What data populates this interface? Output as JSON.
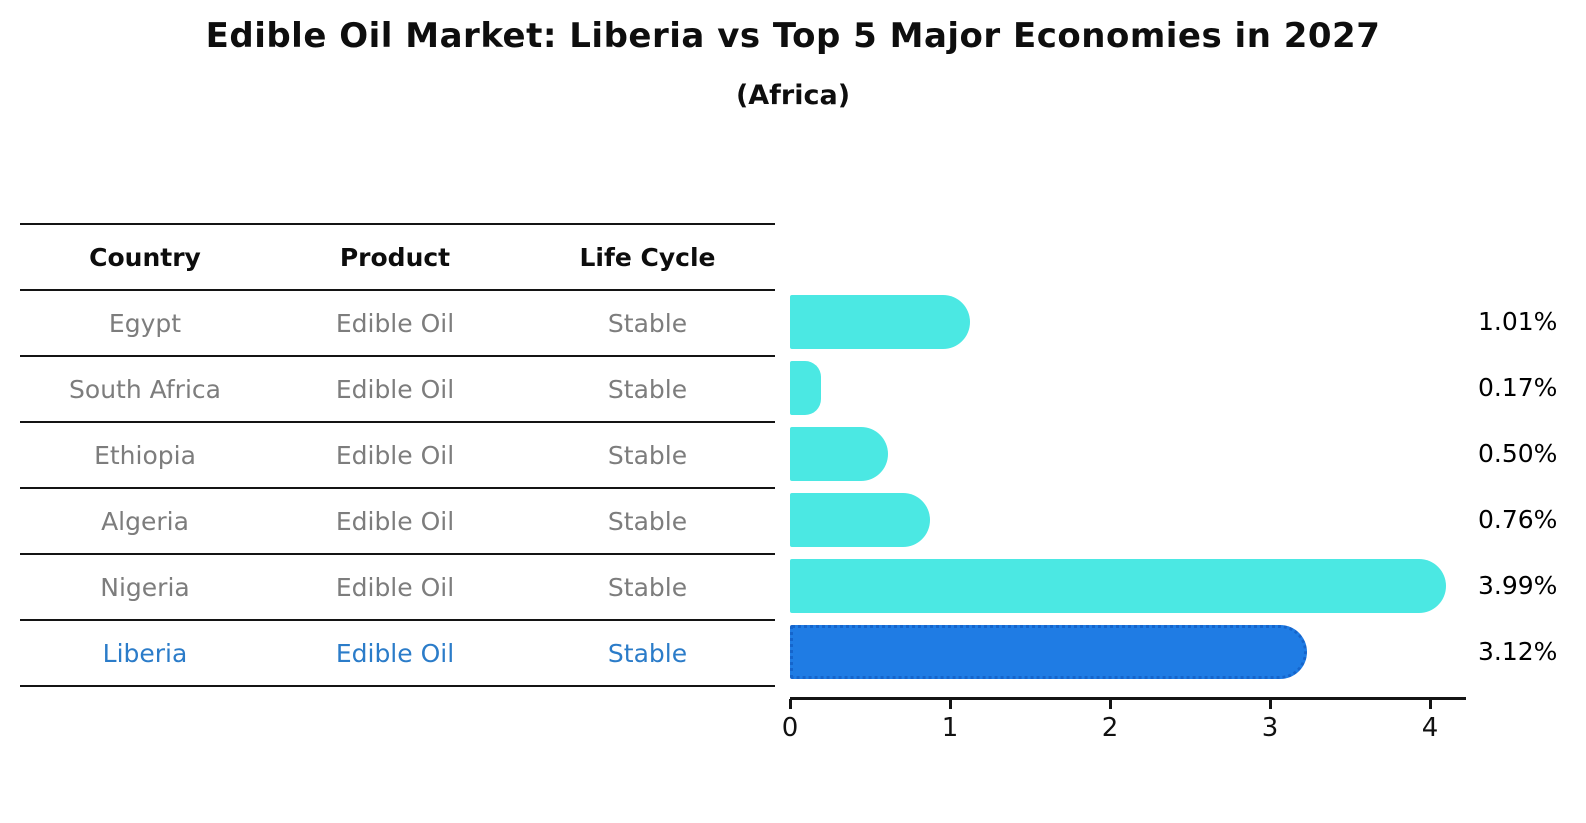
{
  "title": "Edible Oil Market: Liberia vs Top 5 Major Economies in 2027",
  "subtitle": "(Africa)",
  "table": {
    "headers": [
      "Country",
      "Product",
      "Life Cycle"
    ],
    "rows": [
      {
        "country": "Egypt",
        "product": "Edible Oil",
        "life_cycle": "Stable",
        "highlight": false
      },
      {
        "country": "South Africa",
        "product": "Edible Oil",
        "life_cycle": "Stable",
        "highlight": false
      },
      {
        "country": "Ethiopia",
        "product": "Edible Oil",
        "life_cycle": "Stable",
        "highlight": false
      },
      {
        "country": "Algeria",
        "product": "Edible Oil",
        "life_cycle": "Stable",
        "highlight": false
      },
      {
        "country": "Nigeria",
        "product": "Edible Oil",
        "life_cycle": "Stable",
        "highlight": false
      },
      {
        "country": "Liberia",
        "product": "Edible Oil",
        "life_cycle": "Stable",
        "highlight": true
      }
    ]
  },
  "chart_data": {
    "type": "bar",
    "orientation": "horizontal",
    "title": "Edible Oil Market: Liberia vs Top 5 Major Economies in 2027",
    "subtitle": "(Africa)",
    "categories": [
      "Egypt",
      "South Africa",
      "Ethiopia",
      "Algeria",
      "Nigeria",
      "Liberia"
    ],
    "values": [
      1.01,
      0.17,
      0.5,
      0.76,
      3.99,
      3.12
    ],
    "value_labels": [
      "1.01%",
      "0.17%",
      "0.50%",
      "0.76%",
      "3.99%",
      "3.12%"
    ],
    "x_ticks": [
      "0",
      "1",
      "2",
      "3",
      "4"
    ],
    "xlim": [
      0,
      4.2
    ],
    "grid": false,
    "legend": false,
    "highlight_index": 5
  },
  "colors": {
    "bar": "#4BE8E3",
    "highlight_bar": "#1F7CE4",
    "highlight_border": "#1565CC",
    "highlight_text": "#2B7CC9",
    "table_text": "#7D7D7D",
    "axis": "#141414"
  }
}
